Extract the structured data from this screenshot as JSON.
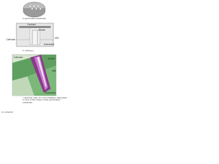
{
  "panels": [
    {
      "caption": "a perforated substrate",
      "labels": []
    },
    {
      "caption": "b cutting a",
      "labels": [
        "Contact",
        "Anode",
        "Cathode",
        "SPE",
        "Substrate"
      ]
    },
    {
      "caption": "c general view of a microbattery deposited in one of the holes of the perforated substrate",
      "labels": [
        "Cathode",
        "Anode",
        "SPE",
        "Substrate"
      ]
    }
  ],
  "footer": "no collector"
}
